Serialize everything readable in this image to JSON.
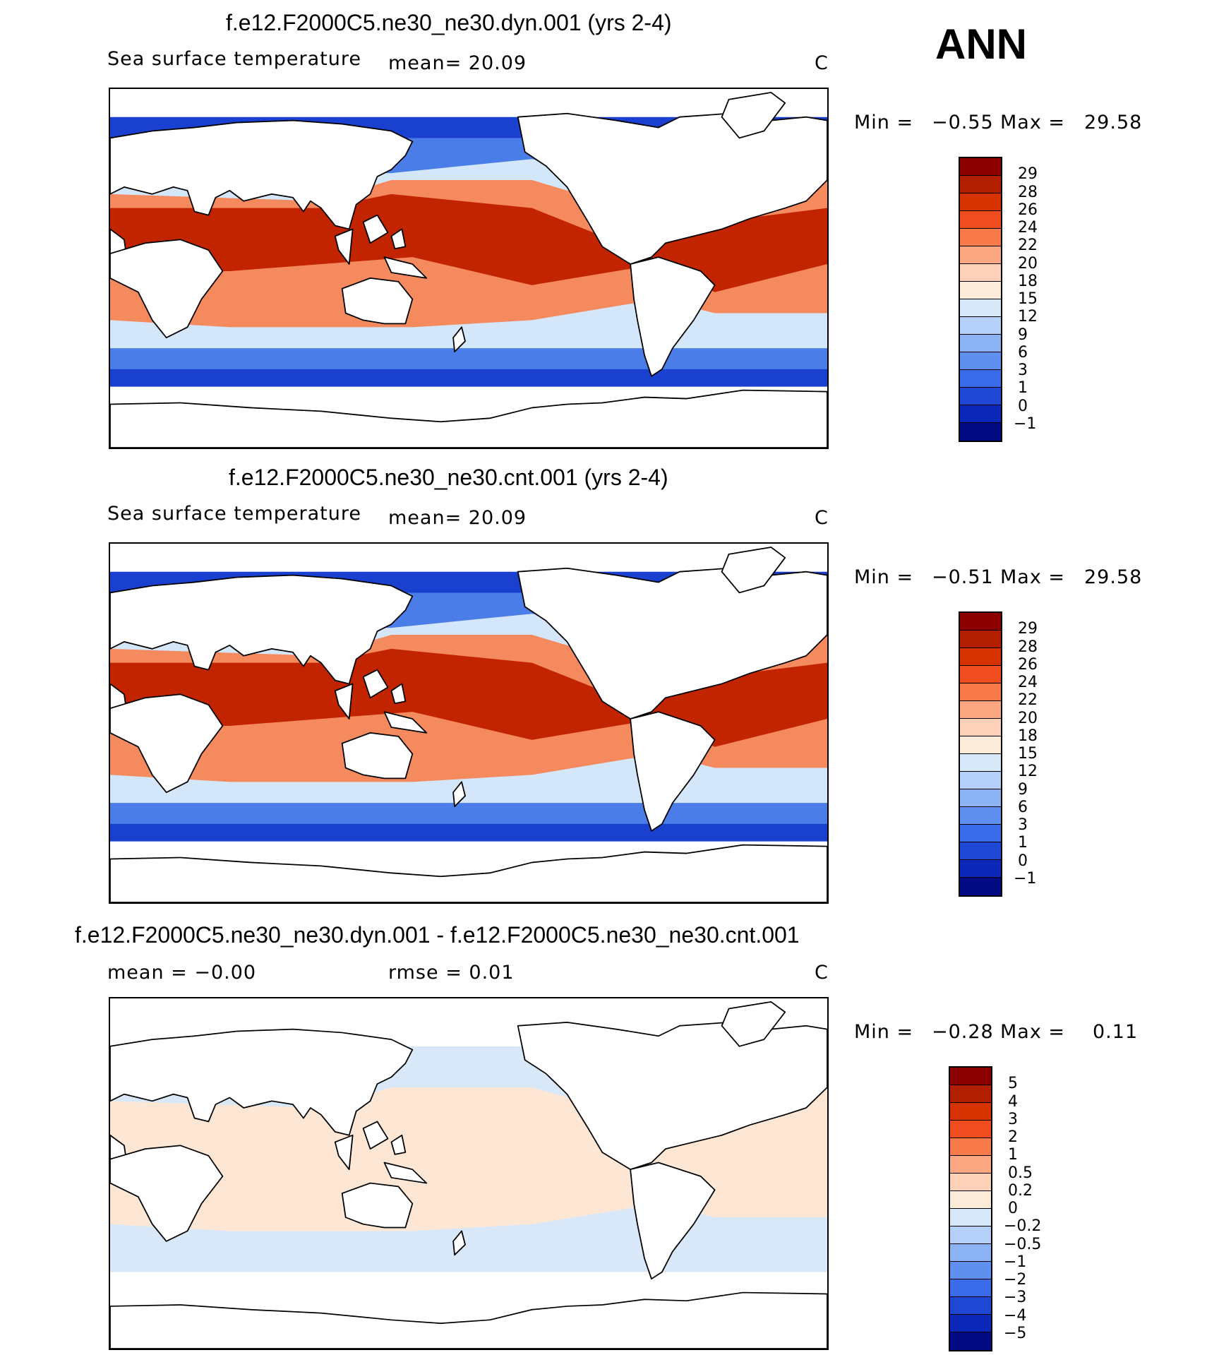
{
  "season": "ANN",
  "panels": [
    {
      "title": "f.e12.F2000C5.ne30_ne30.dyn.001 (yrs 2-4)",
      "variable": "Sea surface temperature",
      "stat1": "mean=   20.09",
      "stat2": "",
      "units": "C",
      "min_label": "Min  =",
      "min_value": "−0.55",
      "max_label": "Max  =",
      "max_value": "29.58",
      "colorbar": {
        "labels": [
          "29",
          "28",
          "26",
          "24",
          "22",
          "20",
          "18",
          "15",
          "12",
          "9",
          "6",
          "3",
          "1",
          "0",
          "−1"
        ],
        "colors": [
          "#8b0000",
          "#b21e00",
          "#d63300",
          "#ef4d1f",
          "#f97a4b",
          "#fca682",
          "#fdd1b8",
          "#fdebd9",
          "#d7e8f8",
          "#b4d0f8",
          "#8cb4f5",
          "#5f90f0",
          "#3a6be8",
          "#1e47d4",
          "#0c28b8",
          "#020b84"
        ]
      },
      "map_colors": {
        "warm": "#c22400",
        "mid": "#f58a5e",
        "cool": "#d4e6fa",
        "cold": "#4a7de8",
        "ice": "#1a40d0"
      }
    },
    {
      "title": "f.e12.F2000C5.ne30_ne30.cnt.001 (yrs 2-4)",
      "variable": "Sea surface temperature",
      "stat1": "mean=   20.09",
      "stat2": "",
      "units": "C",
      "min_label": "Min  =",
      "min_value": "−0.51",
      "max_label": "Max  =",
      "max_value": "29.58",
      "colorbar": {
        "labels": [
          "29",
          "28",
          "26",
          "24",
          "22",
          "20",
          "18",
          "15",
          "12",
          "9",
          "6",
          "3",
          "1",
          "0",
          "−1"
        ],
        "colors": [
          "#8b0000",
          "#b21e00",
          "#d63300",
          "#ef4d1f",
          "#f97a4b",
          "#fca682",
          "#fdd1b8",
          "#fdebd9",
          "#d7e8f8",
          "#b4d0f8",
          "#8cb4f5",
          "#5f90f0",
          "#3a6be8",
          "#1e47d4",
          "#0c28b8",
          "#020b84"
        ]
      },
      "map_colors": {
        "warm": "#c22400",
        "mid": "#f58a5e",
        "cool": "#d4e6fa",
        "cold": "#4a7de8",
        "ice": "#1a40d0"
      }
    },
    {
      "title": "f.e12.F2000C5.ne30_ne30.dyn.001 - f.e12.F2000C5.ne30_ne30.cnt.001",
      "variable": "mean  =   −0.00",
      "stat1": "rmse  =     0.01",
      "stat2": "",
      "units": "C",
      "min_label": "Min  =",
      "min_value": "−0.28",
      "max_label": "Max  =",
      "max_value": "0.11",
      "colorbar": {
        "labels": [
          "5",
          "4",
          "3",
          "2",
          "1",
          "0.5",
          "0.2",
          "0",
          "−0.2",
          "−0.5",
          "−1",
          "−2",
          "−3",
          "−4",
          "−5"
        ],
        "colors": [
          "#8b0000",
          "#b21e00",
          "#d63300",
          "#ef4d1f",
          "#f97a4b",
          "#fca682",
          "#fdd1b8",
          "#fdebd9",
          "#d7e8f8",
          "#b4d0f8",
          "#8cb4f5",
          "#5f90f0",
          "#3a6be8",
          "#1e47d4",
          "#0c28b8",
          "#020b84"
        ]
      },
      "map_colors": {
        "warm": "#fde6d4",
        "mid": "#fde6d4",
        "cool": "#d8e8f8",
        "cold": "#d8e8f8",
        "ice": "#ffffff"
      }
    }
  ]
}
